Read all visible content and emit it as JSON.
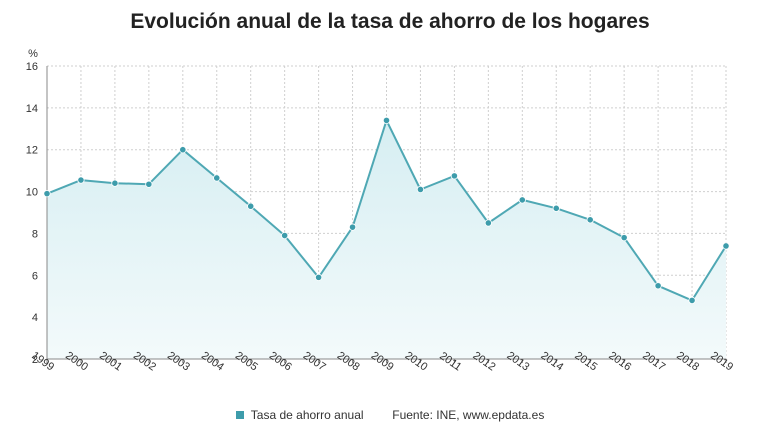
{
  "chart_data": {
    "type": "area",
    "title": "Evolución anual de la tasa de ahorro de los hogares",
    "yunit": "%",
    "ylim": [
      2,
      16
    ],
    "yticks": [
      "2",
      "4",
      "6",
      "8",
      "10",
      "12",
      "14",
      "16"
    ],
    "categories": [
      "1999",
      "2000",
      "2001",
      "2002",
      "2003",
      "2004",
      "2005",
      "2006",
      "2007",
      "2008",
      "2009",
      "2010",
      "2011",
      "2012",
      "2013",
      "2014",
      "2015",
      "2016",
      "2017",
      "2018",
      "2019"
    ],
    "series": [
      {
        "name": "Tasa de ahorro anual",
        "values": [
          9.9,
          10.55,
          10.4,
          10.35,
          12.0,
          10.65,
          9.3,
          7.9,
          5.9,
          8.3,
          13.4,
          10.1,
          10.75,
          8.5,
          9.6,
          9.2,
          8.65,
          7.8,
          5.5,
          4.8,
          7.4
        ]
      }
    ],
    "grid": true,
    "legend_position": "bottom",
    "source": "Fuente: INE, www.epdata.es",
    "colors": {
      "line": "#4fa8b4",
      "marker": "#3d9cab",
      "fill_top": "#d6eef2",
      "fill_bottom": "#f3fafb",
      "grid": "#cfcfcf",
      "axis": "#888888"
    }
  }
}
